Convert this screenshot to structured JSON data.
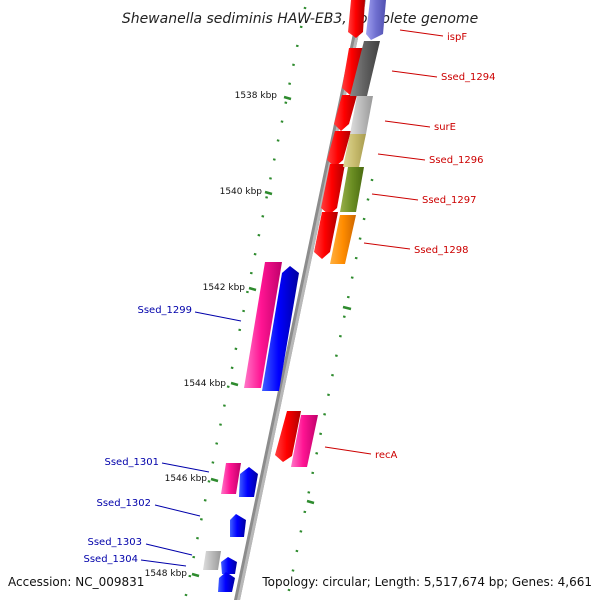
{
  "title": "Shewanella sediminis HAW-EB3, complete genome",
  "footer": {
    "accession": "Accession: NC_009831",
    "summary": "Topology: circular; Length: 5,517,674 bp; Genes: 4,661"
  },
  "ruler": {
    "kbp_labels": [
      "1538 kbp",
      "1540 kbp",
      "1542 kbp",
      "1544 kbp",
      "1546 kbp",
      "1548 kbp"
    ]
  },
  "genes": {
    "forward_labeled": [
      {
        "name": "ispF",
        "color": "#cc0000"
      },
      {
        "name": "Ssed_1294",
        "color": "#cc0000"
      },
      {
        "name": "surE",
        "color": "#cc0000"
      },
      {
        "name": "Ssed_1296",
        "color": "#cc0000"
      },
      {
        "name": "Ssed_1297",
        "color": "#cc0000"
      },
      {
        "name": "Ssed_1298",
        "color": "#cc0000"
      },
      {
        "name": "recA",
        "color": "#cc0000"
      }
    ],
    "reverse_labeled": [
      {
        "name": "Ssed_1299",
        "color": "#0000aa"
      },
      {
        "name": "Ssed_1301",
        "color": "#0000aa"
      },
      {
        "name": "Ssed_1302",
        "color": "#0000aa"
      },
      {
        "name": "Ssed_1303",
        "color": "#0000aa"
      },
      {
        "name": "Ssed_1304",
        "color": "#0000aa"
      }
    ]
  },
  "colors": {
    "backbone": "#888888",
    "forward_gene": "#ff0000",
    "reverse_gene": "#0000ff",
    "pink_gene": "#ff1493",
    "tick": "#2e8b2e"
  }
}
